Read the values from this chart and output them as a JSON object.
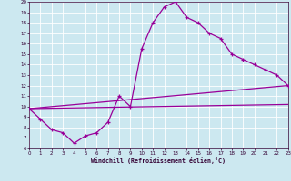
{
  "xlabel": "Windchill (Refroidissement éolien,°C)",
  "bg_color": "#cce8f0",
  "line_color": "#990099",
  "text_color": "#330033",
  "grid_color": "#ffffff",
  "xlim": [
    0,
    23
  ],
  "ylim": [
    6,
    20
  ],
  "lw": 0.9,
  "ms": 3.5,
  "main_x": [
    0,
    1,
    2,
    3,
    4,
    5,
    6,
    7,
    8,
    9,
    10,
    11,
    12,
    13,
    14,
    15,
    16,
    17,
    18,
    19,
    20,
    21,
    22,
    23
  ],
  "main_y": [
    9.8,
    8.8,
    7.8,
    7.5,
    6.5,
    7.2,
    7.5,
    8.5,
    11.0,
    10.0,
    15.5,
    18.0,
    19.5,
    20.0,
    18.5,
    18.0,
    17.0,
    16.5,
    15.0,
    14.5,
    14.0,
    13.5,
    13.0,
    12.0
  ],
  "straight_lines": [
    {
      "x": [
        0,
        23
      ],
      "y": [
        9.8,
        12.0
      ]
    },
    {
      "x": [
        0,
        23
      ],
      "y": [
        9.8,
        10.2
      ]
    }
  ]
}
